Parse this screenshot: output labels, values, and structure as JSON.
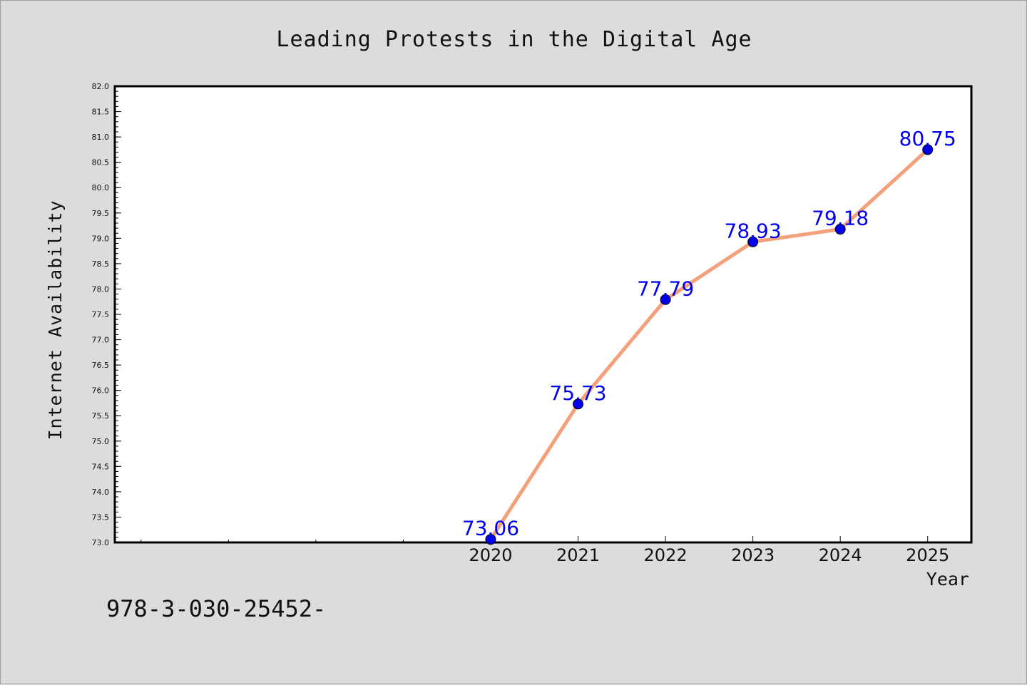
{
  "chart_data": {
    "type": "line",
    "title": "Leading Protests in the Digital Age",
    "xlabel": "Year",
    "ylabel": "Internet Availability",
    "categories": [
      "2020",
      "2021",
      "2022",
      "2023",
      "2024",
      "2025"
    ],
    "x": [
      2020,
      2021,
      2022,
      2023,
      2024,
      2025
    ],
    "series": [
      {
        "values": [
          73.06,
          75.73,
          77.79,
          78.93,
          79.18,
          80.75
        ],
        "labels": [
          "73.06",
          "75.73",
          "77.79",
          "78.93",
          "79.18",
          "80.75"
        ],
        "line_color": "#f4a07a",
        "marker_color": "#0000ee",
        "label_color": "#0000ee"
      }
    ],
    "xlim": [
      2015.7,
      2025.5
    ],
    "ylim": [
      73.0,
      82.0
    ],
    "yticks": [
      "73.0",
      "73.5",
      "74.0",
      "74.5",
      "75.0",
      "75.5",
      "76.0",
      "76.5",
      "77.0",
      "77.5",
      "78.0",
      "78.5",
      "79.0",
      "79.5",
      "80.0",
      "80.5",
      "81.0",
      "81.5",
      "82.0"
    ],
    "grid": false,
    "legend": "none"
  },
  "footer_text": "978-3-030-25452-"
}
